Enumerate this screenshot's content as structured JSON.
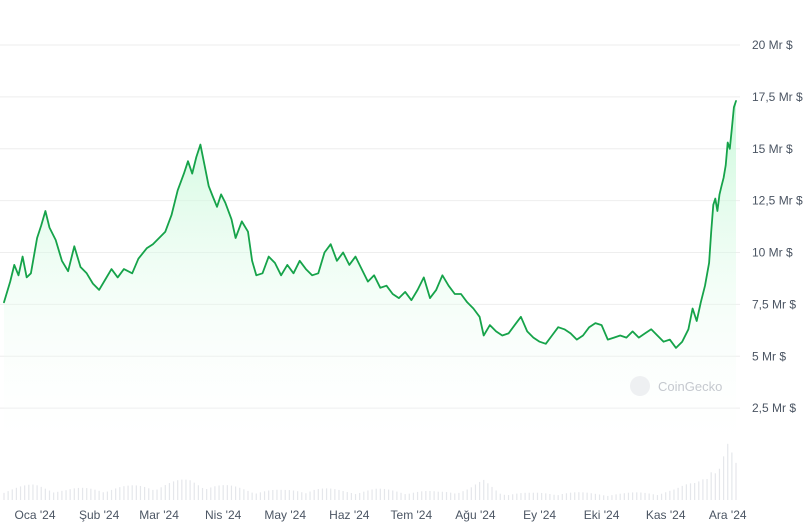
{
  "watermark": "CoinGecko",
  "colors": {
    "line": "#16a34a",
    "area_top": "#bbf7d0",
    "grid": "#eeeeee",
    "volume": "#e5e7eb"
  },
  "chart_data": {
    "type": "area",
    "title": "",
    "xlabel": "",
    "ylabel": "",
    "ylim": [
      0,
      20
    ],
    "yticks": [
      {
        "value": 20,
        "label": "20 Mr $"
      },
      {
        "value": 17.5,
        "label": "17,5 Mr $"
      },
      {
        "value": 15,
        "label": "15 Mr $"
      },
      {
        "value": 12.5,
        "label": "12,5 Mr $"
      },
      {
        "value": 10,
        "label": "10 Mr $"
      },
      {
        "value": 7.5,
        "label": "7,5 Mr $"
      },
      {
        "value": 5,
        "label": "5 Mr $"
      },
      {
        "value": 2.5,
        "label": "2,5 Mr $"
      }
    ],
    "xticks": [
      {
        "label": "Oca '24",
        "day": 15
      },
      {
        "label": "Şub '24",
        "day": 46
      },
      {
        "label": "Mar '24",
        "day": 75
      },
      {
        "label": "Nis '24",
        "day": 106
      },
      {
        "label": "May '24",
        "day": 136
      },
      {
        "label": "Haz '24",
        "day": 167
      },
      {
        "label": "Tem '24",
        "day": 197
      },
      {
        "label": "Ağu '24",
        "day": 228
      },
      {
        "label": "Ey '24",
        "day": 259
      },
      {
        "label": "Eki '24",
        "day": 289
      },
      {
        "label": "Kas '24",
        "day": 320
      },
      {
        "label": "Ara '24",
        "day": 350
      }
    ],
    "x_range": [
      0,
      354
    ],
    "series": [
      {
        "values": [
          [
            0,
            7.6
          ],
          [
            3,
            8.6
          ],
          [
            5,
            9.4
          ],
          [
            7,
            8.9
          ],
          [
            9,
            9.8
          ],
          [
            11,
            8.8
          ],
          [
            13,
            9.0
          ],
          [
            16,
            10.7
          ],
          [
            18,
            11.3
          ],
          [
            20,
            12.0
          ],
          [
            22,
            11.2
          ],
          [
            25,
            10.6
          ],
          [
            28,
            9.6
          ],
          [
            31,
            9.1
          ],
          [
            34,
            10.3
          ],
          [
            37,
            9.3
          ],
          [
            40,
            9.0
          ],
          [
            43,
            8.5
          ],
          [
            46,
            8.2
          ],
          [
            49,
            8.7
          ],
          [
            52,
            9.2
          ],
          [
            55,
            8.8
          ],
          [
            58,
            9.2
          ],
          [
            62,
            9.0
          ],
          [
            65,
            9.7
          ],
          [
            69,
            10.2
          ],
          [
            72,
            10.4
          ],
          [
            75,
            10.7
          ],
          [
            78,
            11.0
          ],
          [
            81,
            11.8
          ],
          [
            84,
            13.0
          ],
          [
            87,
            13.8
          ],
          [
            89,
            14.4
          ],
          [
            91,
            13.8
          ],
          [
            93,
            14.6
          ],
          [
            95,
            15.2
          ],
          [
            97,
            14.2
          ],
          [
            99,
            13.2
          ],
          [
            101,
            12.7
          ],
          [
            103,
            12.2
          ],
          [
            105,
            12.8
          ],
          [
            107,
            12.4
          ],
          [
            110,
            11.6
          ],
          [
            112,
            10.7
          ],
          [
            115,
            11.5
          ],
          [
            118,
            11.0
          ],
          [
            120,
            9.6
          ],
          [
            122,
            8.9
          ],
          [
            125,
            9.0
          ],
          [
            128,
            9.8
          ],
          [
            131,
            9.5
          ],
          [
            134,
            8.9
          ],
          [
            137,
            9.4
          ],
          [
            140,
            9.0
          ],
          [
            143,
            9.6
          ],
          [
            146,
            9.2
          ],
          [
            149,
            8.9
          ],
          [
            152,
            9.0
          ],
          [
            155,
            10.0
          ],
          [
            158,
            10.4
          ],
          [
            161,
            9.6
          ],
          [
            164,
            10.0
          ],
          [
            167,
            9.4
          ],
          [
            170,
            9.8
          ],
          [
            173,
            9.2
          ],
          [
            176,
            8.6
          ],
          [
            179,
            8.9
          ],
          [
            182,
            8.3
          ],
          [
            185,
            8.4
          ],
          [
            188,
            8.0
          ],
          [
            191,
            7.8
          ],
          [
            194,
            8.1
          ],
          [
            197,
            7.7
          ],
          [
            200,
            8.2
          ],
          [
            203,
            8.8
          ],
          [
            206,
            7.8
          ],
          [
            209,
            8.2
          ],
          [
            212,
            8.9
          ],
          [
            215,
            8.4
          ],
          [
            218,
            8.0
          ],
          [
            221,
            8.0
          ],
          [
            224,
            7.6
          ],
          [
            227,
            7.3
          ],
          [
            230,
            6.9
          ],
          [
            232,
            6.0
          ],
          [
            235,
            6.5
          ],
          [
            238,
            6.2
          ],
          [
            241,
            6.0
          ],
          [
            244,
            6.1
          ],
          [
            247,
            6.5
          ],
          [
            250,
            6.9
          ],
          [
            253,
            6.2
          ],
          [
            256,
            5.9
          ],
          [
            259,
            5.7
          ],
          [
            262,
            5.6
          ],
          [
            265,
            6.0
          ],
          [
            268,
            6.4
          ],
          [
            271,
            6.3
          ],
          [
            274,
            6.1
          ],
          [
            277,
            5.8
          ],
          [
            280,
            6.0
          ],
          [
            283,
            6.4
          ],
          [
            286,
            6.6
          ],
          [
            289,
            6.5
          ],
          [
            292,
            5.8
          ],
          [
            295,
            5.9
          ],
          [
            298,
            6.0
          ],
          [
            301,
            5.9
          ],
          [
            304,
            6.2
          ],
          [
            307,
            5.9
          ],
          [
            310,
            6.1
          ],
          [
            313,
            6.3
          ],
          [
            316,
            6.0
          ],
          [
            319,
            5.7
          ],
          [
            322,
            5.8
          ],
          [
            325,
            5.4
          ],
          [
            328,
            5.7
          ],
          [
            331,
            6.3
          ],
          [
            333,
            7.3
          ],
          [
            335,
            6.7
          ],
          [
            337,
            7.6
          ],
          [
            339,
            8.4
          ],
          [
            341,
            9.5
          ],
          [
            342,
            11.0
          ],
          [
            343,
            12.3
          ],
          [
            344,
            12.6
          ],
          [
            345,
            12.0
          ],
          [
            346,
            12.8
          ],
          [
            347,
            13.2
          ],
          [
            348,
            13.6
          ],
          [
            349,
            14.2
          ],
          [
            350,
            15.3
          ],
          [
            351,
            15.0
          ],
          [
            352,
            16.0
          ],
          [
            353,
            17.0
          ],
          [
            354,
            17.3
          ]
        ]
      }
    ],
    "volume": [
      [
        0,
        0.9
      ],
      [
        15,
        1.1
      ],
      [
        30,
        0.8
      ],
      [
        45,
        0.9
      ],
      [
        60,
        1.0
      ],
      [
        75,
        1.2
      ],
      [
        90,
        1.5
      ],
      [
        105,
        1.1
      ],
      [
        120,
        0.8
      ],
      [
        135,
        0.7
      ],
      [
        150,
        0.9
      ],
      [
        165,
        0.7
      ],
      [
        180,
        0.8
      ],
      [
        195,
        0.7
      ],
      [
        210,
        0.6
      ],
      [
        225,
        0.9
      ],
      [
        232,
        1.4
      ],
      [
        240,
        0.6
      ],
      [
        255,
        0.5
      ],
      [
        270,
        0.6
      ],
      [
        285,
        0.5
      ],
      [
        300,
        0.5
      ],
      [
        315,
        0.6
      ],
      [
        325,
        0.8
      ],
      [
        335,
        1.4
      ],
      [
        342,
        3.0
      ],
      [
        345,
        2.2
      ],
      [
        350,
        4.0
      ],
      [
        354,
        2.6
      ]
    ],
    "volume_max": 5,
    "grid": true,
    "legend": "none"
  }
}
